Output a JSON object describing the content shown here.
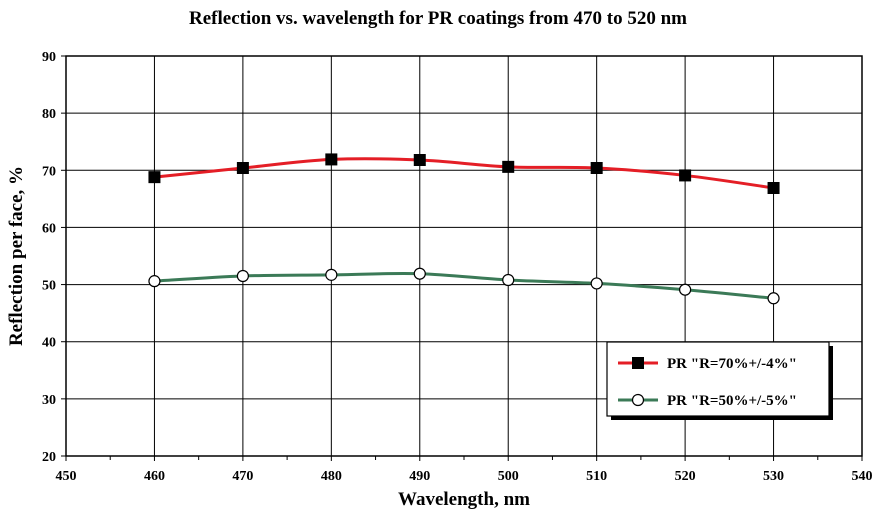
{
  "chart_data": {
    "type": "line",
    "title": "Reflection vs. wavelength for PR coatings from 470 to 520 nm",
    "xlabel": "Wavelength, nm",
    "ylabel": "Reflection per face, %",
    "xlim": [
      450,
      540
    ],
    "ylim": [
      20,
      90
    ],
    "x_ticks": [
      450,
      460,
      470,
      480,
      490,
      500,
      510,
      520,
      530,
      540
    ],
    "y_ticks": [
      20,
      30,
      40,
      50,
      60,
      70,
      80,
      90
    ],
    "grid": true,
    "legend_position": "right",
    "x": [
      460,
      470,
      480,
      490,
      500,
      510,
      520,
      530
    ],
    "series": [
      {
        "name": "PR \"R=70%+/-4%\"",
        "color": "#e41e26",
        "marker": "filled-square",
        "values": [
          68.8,
          70.4,
          71.9,
          71.8,
          70.6,
          70.4,
          69.1,
          66.9
        ]
      },
      {
        "name": "PR \"R=50%+/-5%\"",
        "color": "#3b7a57",
        "marker": "open-circle",
        "values": [
          50.6,
          51.5,
          51.7,
          51.9,
          50.8,
          50.2,
          49.1,
          47.6
        ]
      }
    ]
  }
}
